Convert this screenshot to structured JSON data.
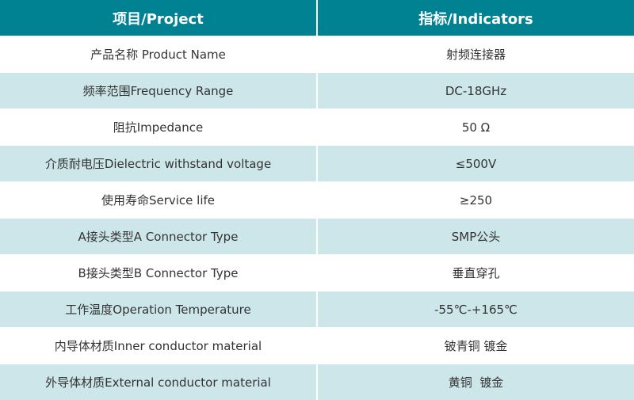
{
  "header": {
    "project": "项目/Project",
    "indicators": "指标/Indicators"
  },
  "colors": {
    "header_bg": "#008292",
    "alt_row_bg": "#cde6ea"
  },
  "rows": [
    {
      "project": "产品名称 Product Name",
      "indicator": "射频连接器"
    },
    {
      "project": "频率范围Frequency Range",
      "indicator": "DC-18GHz"
    },
    {
      "project": "阻抗Impedance",
      "indicator": "50 Ω"
    },
    {
      "project": "介质耐电压Dielectric withstand voltage",
      "indicator": "≤500V"
    },
    {
      "project": "使用寿命Service life",
      "indicator": "≥250"
    },
    {
      "project": "A接头类型A Connector Type",
      "indicator": "SMP公头"
    },
    {
      "project": "B接头类型B Connector Type",
      "indicator": "垂直穿孔"
    },
    {
      "project": "工作温度Operation Temperature",
      "indicator": "-55℃-+165℃"
    },
    {
      "project": "内导体材质Inner conductor material",
      "indicator": "铍青铜 镀金"
    },
    {
      "project": "外导体材质External conductor material",
      "indicator": "黄铜  镀金"
    }
  ]
}
